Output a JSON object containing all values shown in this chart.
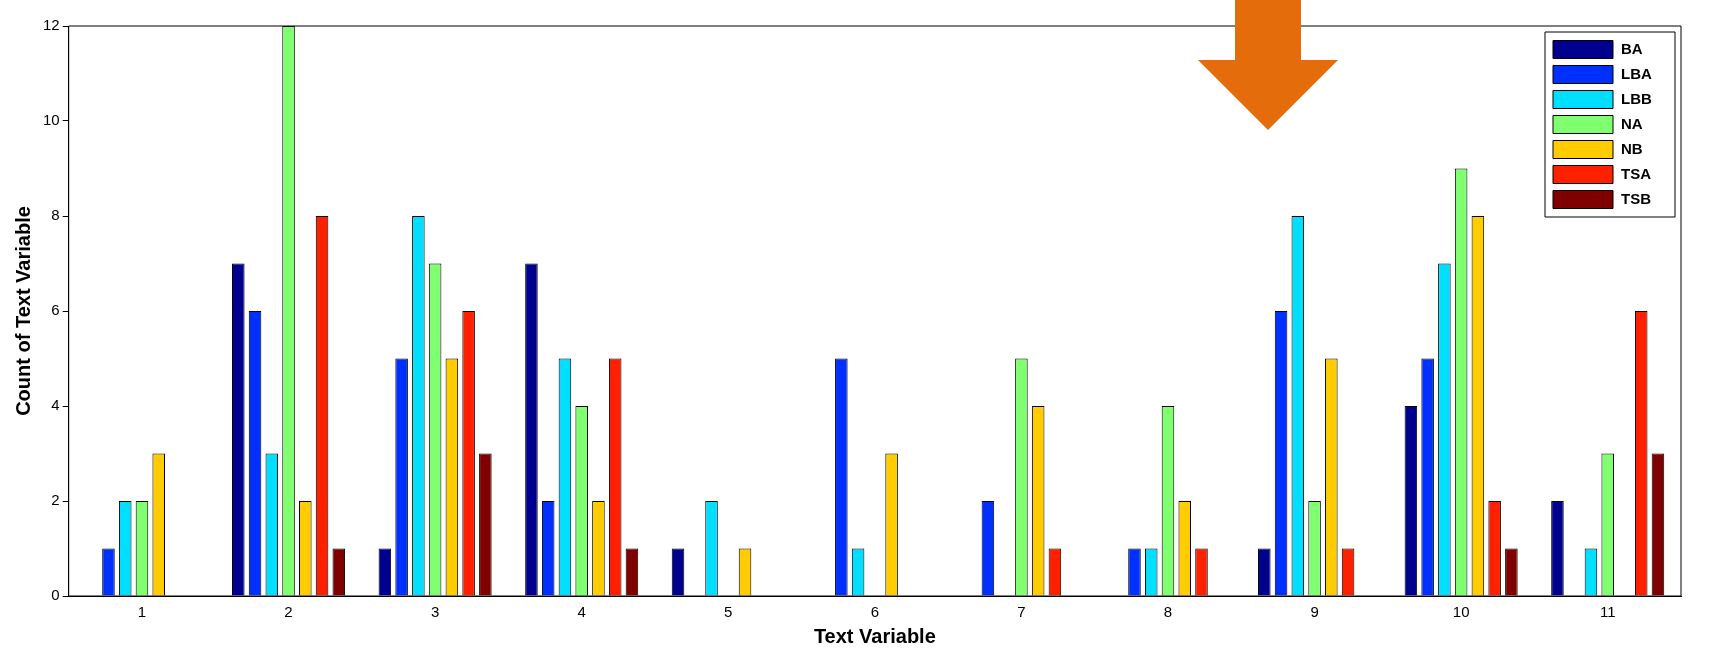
{
  "chart_data": {
    "type": "bar",
    "xlabel": "Text Variable",
    "ylabel": "Count of Text Variable",
    "categories": [
      "1",
      "2",
      "3",
      "4",
      "5",
      "6",
      "7",
      "8",
      "9",
      "10",
      "11"
    ],
    "series": [
      {
        "name": "BA",
        "color": "#00008f",
        "values": [
          0,
          7,
          1,
          7,
          1,
          0,
          0,
          0,
          1,
          4,
          2
        ]
      },
      {
        "name": "LBA",
        "color": "#0030ff",
        "values": [
          1,
          6,
          5,
          2,
          0,
          5,
          2,
          1,
          6,
          5,
          0
        ]
      },
      {
        "name": "LBB",
        "color": "#00dfff",
        "values": [
          2,
          3,
          8,
          5,
          2,
          1,
          0,
          1,
          8,
          7,
          1
        ]
      },
      {
        "name": "NA",
        "color": "#80ff70",
        "values": [
          2,
          12,
          7,
          4,
          0,
          0,
          5,
          4,
          2,
          9,
          3
        ]
      },
      {
        "name": "NB",
        "color": "#ffcc00",
        "values": [
          3,
          2,
          5,
          2,
          1,
          3,
          4,
          2,
          5,
          8,
          0
        ]
      },
      {
        "name": "TSA",
        "color": "#ff2000",
        "values": [
          0,
          8,
          6,
          5,
          0,
          0,
          1,
          1,
          1,
          2,
          6
        ]
      },
      {
        "name": "TSB",
        "color": "#800000",
        "values": [
          0,
          1,
          3,
          1,
          0,
          0,
          0,
          0,
          0,
          1,
          3
        ]
      }
    ],
    "ylim": [
      0,
      12
    ],
    "yticks": [
      0,
      2,
      4,
      6,
      8,
      10,
      12
    ],
    "grid": false,
    "legend": "top right"
  }
}
